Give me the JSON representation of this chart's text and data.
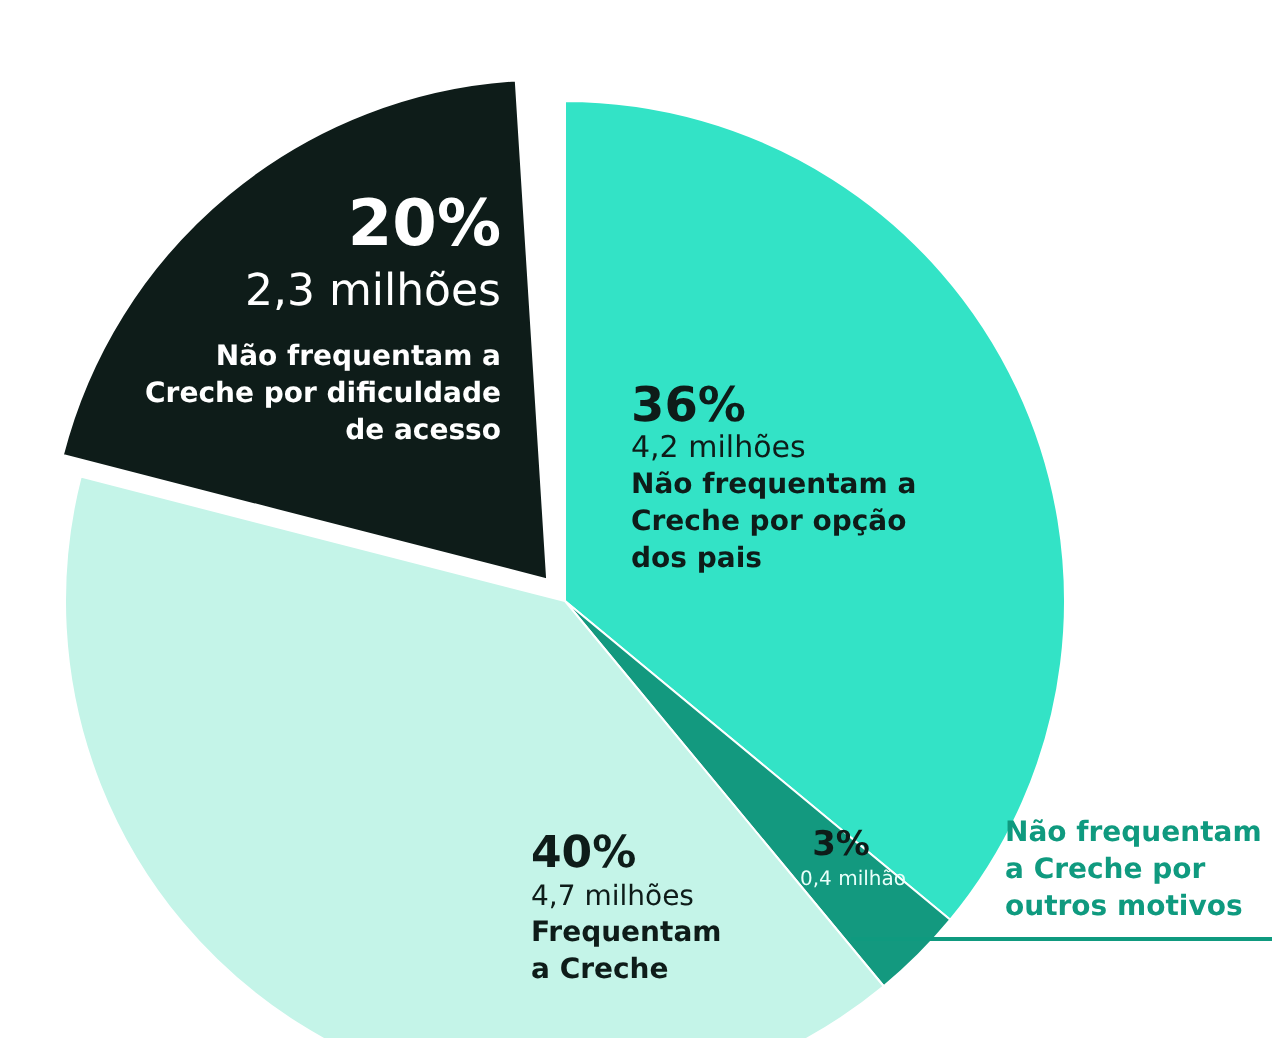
{
  "chart_data": {
    "type": "pie",
    "categories": [
      "Não frequentam a Creche por opção dos pais",
      "Não frequentam a Creche por outros motivos",
      "Frequentam a Creche",
      "Não frequentam a Creche por dificuldade de acesso"
    ],
    "values": [
      36,
      3,
      40,
      20
    ],
    "value_labels": [
      "36%",
      "3%",
      "40%",
      "20%"
    ],
    "colors": [
      "#33e3c6",
      "#13997f",
      "#c4f4e8",
      "#0e1c19"
    ],
    "annotations": [
      "4,2 milhões",
      "0,4 milhão",
      "4,7 milhões",
      "2,3 milhões"
    ]
  }
}
